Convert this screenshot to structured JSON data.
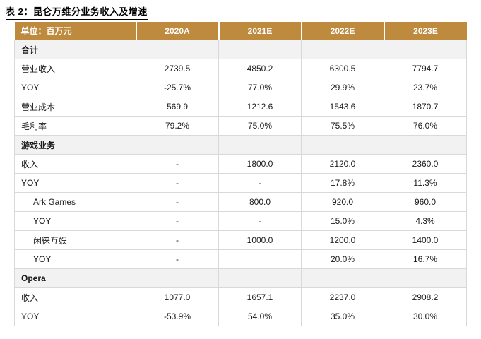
{
  "title": "表 2：昆仑万维分业务收入及增速",
  "table": {
    "unit_label": "单位：百万元",
    "columns": [
      "2020A",
      "2021E",
      "2022E",
      "2023E"
    ],
    "rows": [
      {
        "label": "合计",
        "type": "section",
        "values": [
          "",
          "",
          "",
          ""
        ]
      },
      {
        "label": "营业收入",
        "type": "data",
        "values": [
          "2739.5",
          "4850.2",
          "6300.5",
          "7794.7"
        ]
      },
      {
        "label": "YOY",
        "type": "data",
        "values": [
          "-25.7%",
          "77.0%",
          "29.9%",
          "23.7%"
        ]
      },
      {
        "label": "营业成本",
        "type": "data",
        "values": [
          "569.9",
          "1212.6",
          "1543.6",
          "1870.7"
        ]
      },
      {
        "label": "毛利率",
        "type": "data",
        "values": [
          "79.2%",
          "75.0%",
          "75.5%",
          "76.0%"
        ]
      },
      {
        "label": "游戏业务",
        "type": "section",
        "values": [
          "",
          "",
          "",
          ""
        ]
      },
      {
        "label": "收入",
        "type": "data",
        "values": [
          "-",
          "1800.0",
          "2120.0",
          "2360.0"
        ]
      },
      {
        "label": "YOY",
        "type": "data",
        "values": [
          "-",
          "-",
          "17.8%",
          "11.3%"
        ]
      },
      {
        "label": "Ark Games",
        "type": "data-indent",
        "values": [
          "-",
          "800.0",
          "920.0",
          "960.0"
        ]
      },
      {
        "label": "YOY",
        "type": "data-indent",
        "values": [
          "-",
          "-",
          "15.0%",
          "4.3%"
        ]
      },
      {
        "label": "闲徕互娱",
        "type": "data-indent",
        "values": [
          "-",
          "1000.0",
          "1200.0",
          "1400.0"
        ]
      },
      {
        "label": "YOY",
        "type": "data-indent",
        "values": [
          "-",
          "",
          "20.0%",
          "16.7%"
        ]
      },
      {
        "label": "Opera",
        "type": "section",
        "values": [
          "",
          "",
          "",
          ""
        ]
      },
      {
        "label": "收入",
        "type": "data",
        "values": [
          "1077.0",
          "1657.1",
          "2237.0",
          "2908.2"
        ]
      },
      {
        "label": "YOY",
        "type": "data",
        "values": [
          "-53.9%",
          "54.0%",
          "35.0%",
          "30.0%"
        ]
      }
    ]
  },
  "colors": {
    "header_bg": "#BE8A3E",
    "header_text": "#FFFFFF",
    "section_bg": "#F2F2F2",
    "border": "#D9D9D9",
    "title_text": "#000000"
  }
}
